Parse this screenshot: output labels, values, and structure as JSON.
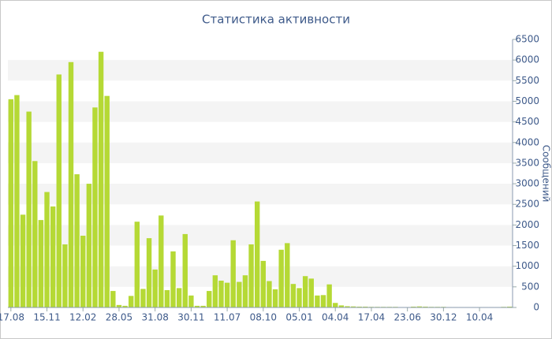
{
  "chart_data": {
    "type": "bar",
    "title": "Статистика активности",
    "y_label": "Сообщений",
    "categories": [
      "17.08",
      null,
      null,
      null,
      null,
      null,
      "15.11",
      null,
      null,
      null,
      null,
      null,
      "12.02",
      null,
      null,
      null,
      null,
      null,
      "28.05",
      null,
      null,
      null,
      null,
      null,
      "31.08",
      null,
      null,
      null,
      null,
      null,
      "30.11",
      null,
      null,
      null,
      null,
      null,
      "11.07",
      null,
      null,
      null,
      null,
      null,
      "08.10",
      null,
      null,
      null,
      null,
      null,
      "05.01",
      null,
      null,
      null,
      null,
      null,
      "04.04",
      null,
      null,
      null,
      null,
      null,
      "17.04",
      null,
      null,
      null,
      null,
      null,
      "23.06",
      null,
      null,
      null,
      null,
      null,
      "30.12",
      null,
      null,
      null,
      null,
      null,
      "10.04",
      null,
      null,
      null,
      null,
      null
    ],
    "values": [
      5050,
      5150,
      2250,
      4750,
      3550,
      2120,
      2800,
      2450,
      5650,
      1530,
      5950,
      3230,
      1740,
      3000,
      4850,
      6200,
      5130,
      400,
      60,
      40,
      280,
      2080,
      450,
      1680,
      920,
      2230,
      420,
      1360,
      470,
      1780,
      290,
      40,
      40,
      400,
      780,
      650,
      600,
      1630,
      620,
      780,
      1530,
      2570,
      1130,
      640,
      440,
      1400,
      1560,
      570,
      470,
      760,
      700,
      290,
      300,
      560,
      110,
      50,
      30,
      25,
      20,
      20,
      15,
      15,
      15,
      15,
      15,
      10,
      10,
      20,
      25,
      20,
      15,
      15,
      15,
      10,
      10,
      10,
      10,
      10,
      10,
      10,
      10,
      10,
      15,
      20
    ],
    "color": "#b5d935",
    "ylim": [
      0,
      6500
    ],
    "yticks": [
      0,
      500,
      1000,
      1500,
      2000,
      2500,
      3000,
      3500,
      4000,
      4500,
      5000,
      5500,
      6000,
      6500
    ],
    "grid": "alternating-bands"
  }
}
